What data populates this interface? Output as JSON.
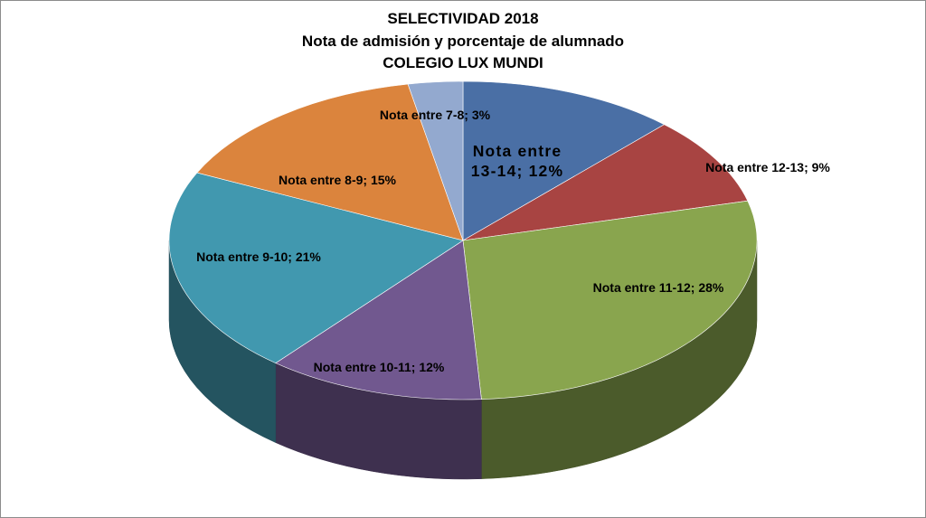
{
  "title_lines": [
    "SELECTIVIDAD 2018",
    "Nota de admisión y porcentaje de alumnado",
    "COLEGIO LUX MUNDI"
  ],
  "chart_data": {
    "type": "pie",
    "style": "3d",
    "legend": "none",
    "title": "SELECTIVIDAD 2018 Nota de admisión y porcentaje de alumnado COLEGIO LUX MUNDI",
    "slices": [
      {
        "label": "Nota entre 13-14",
        "value": 12,
        "color": "#4a6fa5"
      },
      {
        "label": "Nota entre 12-13",
        "value": 9,
        "color": "#a84442"
      },
      {
        "label": "Nota entre 11-12",
        "value": 28,
        "color": "#89a54e"
      },
      {
        "label": "Nota entre 10-11",
        "value": 12,
        "color": "#71588f"
      },
      {
        "label": "Nota entre 9-10",
        "value": 21,
        "color": "#4198af"
      },
      {
        "label": "Nota entre 8-9",
        "value": 15,
        "color": "#db843d"
      },
      {
        "label": "Nota entre 7-8",
        "value": 3,
        "color": "#93a9cf"
      }
    ],
    "data_labels": [
      "Nota entre 13-14; 12%",
      "Nota entre 12-13; 9%",
      "Nota entre 11-12; 28%",
      "Nota entre 10-11; 12%",
      "Nota entre 9-10; 21%",
      "Nota entre 8-9; 15%",
      "Nota entre 7-8; 3%"
    ]
  }
}
